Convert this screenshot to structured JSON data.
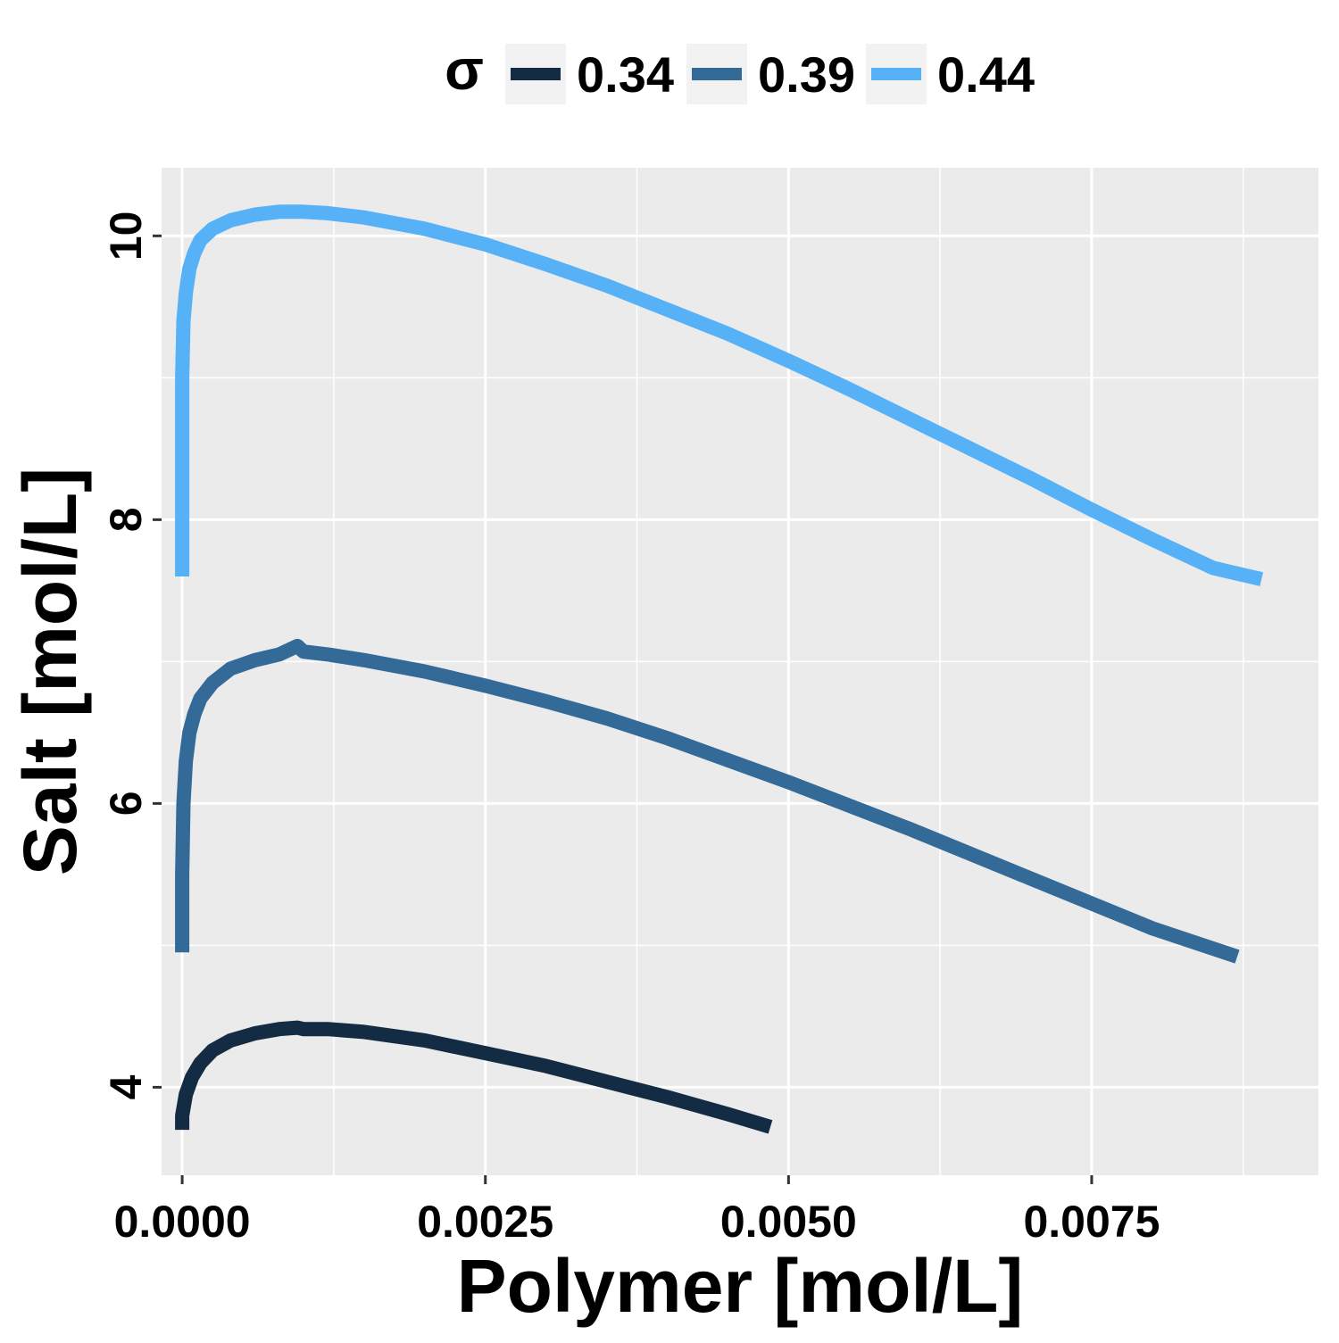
{
  "chart_data": {
    "type": "line",
    "xlabel": "Polymer [mol/L]",
    "ylabel": "Salt [mol/L]",
    "xlim": [
      -0.00017,
      0.00937
    ],
    "ylim": [
      3.38,
      10.48
    ],
    "x_ticks": [
      0.0,
      0.0025,
      0.005,
      0.0075
    ],
    "x_tick_labels": [
      "0.0000",
      "0.0025",
      "0.0050",
      "0.0075"
    ],
    "y_ticks": [
      4,
      6,
      8,
      10
    ],
    "y_tick_labels": [
      "4",
      "6",
      "8",
      "10"
    ],
    "x_minor_ticks": [
      0.00125,
      0.00375,
      0.00625,
      0.00875
    ],
    "y_minor_ticks": [
      5,
      7,
      9
    ],
    "grid": true,
    "legend": {
      "title": "σ",
      "position": "top"
    },
    "series": [
      {
        "name": "0.34",
        "color": "#132B43",
        "x": [
          0.0,
          0.0,
          3e-05,
          8e-05,
          0.00015,
          0.00025,
          0.0004,
          0.0006,
          0.0008,
          0.00095,
          0.001,
          0.0012,
          0.0015,
          0.002,
          0.0025,
          0.003,
          0.0035,
          0.004,
          0.0045,
          0.00485
        ],
        "y": [
          3.7,
          3.8,
          3.95,
          4.07,
          4.17,
          4.26,
          4.33,
          4.38,
          4.41,
          4.42,
          4.41,
          4.41,
          4.39,
          4.33,
          4.24,
          4.15,
          4.04,
          3.93,
          3.81,
          3.72
        ]
      },
      {
        "name": "0.39",
        "color": "#336A98",
        "x": [
          0.0,
          0.0,
          1e-05,
          3e-05,
          6e-05,
          0.0001,
          0.00015,
          0.00025,
          0.0004,
          0.0006,
          0.0008,
          0.00095,
          0.001,
          0.0012,
          0.0015,
          0.002,
          0.0025,
          0.003,
          0.0035,
          0.004,
          0.005,
          0.006,
          0.007,
          0.008,
          0.0087
        ],
        "y": [
          4.95,
          5.5,
          6.0,
          6.3,
          6.5,
          6.63,
          6.74,
          6.85,
          6.95,
          7.01,
          7.05,
          7.11,
          7.07,
          7.05,
          7.01,
          6.93,
          6.83,
          6.72,
          6.6,
          6.46,
          6.15,
          5.82,
          5.47,
          5.12,
          4.92
        ]
      },
      {
        "name": "0.44",
        "color": "#56B1F7",
        "x": [
          0.0,
          0.0,
          0.0,
          1e-05,
          3e-05,
          6e-05,
          0.0001,
          0.00015,
          0.00025,
          0.0004,
          0.0006,
          0.0008,
          0.001,
          0.0012,
          0.0015,
          0.002,
          0.0025,
          0.003,
          0.0035,
          0.004,
          0.0045,
          0.005,
          0.0055,
          0.006,
          0.0065,
          0.007,
          0.0075,
          0.008,
          0.0085,
          0.0089
        ],
        "y": [
          7.6,
          8.3,
          9.0,
          9.4,
          9.6,
          9.77,
          9.88,
          9.97,
          10.05,
          10.11,
          10.15,
          10.17,
          10.17,
          10.16,
          10.13,
          10.05,
          9.94,
          9.8,
          9.65,
          9.48,
          9.31,
          9.12,
          8.92,
          8.71,
          8.5,
          8.29,
          8.07,
          7.86,
          7.66,
          7.58
        ]
      }
    ]
  }
}
